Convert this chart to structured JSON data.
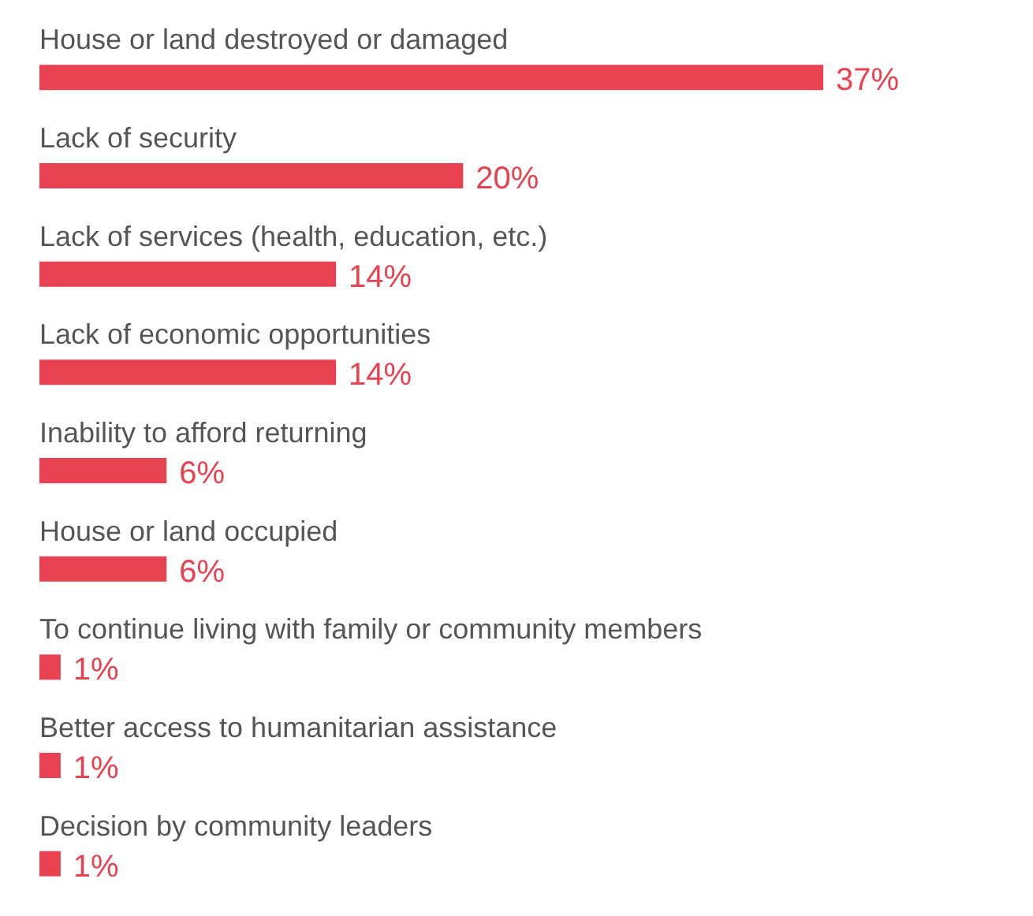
{
  "chart_data": {
    "type": "bar",
    "orientation": "horizontal",
    "categories": [
      "House or land destroyed or damaged",
      "Lack of security",
      "Lack of services (health, education, etc.)",
      "Lack of economic opportunities",
      "Inability to afford returning",
      "House or land occupied",
      "To continue living with family or community members",
      "Better access to humanitarian assistance",
      "Decision by community leaders"
    ],
    "values": [
      37,
      20,
      14,
      14,
      6,
      6,
      1,
      1,
      1
    ],
    "value_labels": [
      "37%",
      "20%",
      "14%",
      "14%",
      "6%",
      "6%",
      "1%",
      "1%",
      "1%"
    ],
    "color": "#e8414f",
    "xlim": [
      0,
      37
    ],
    "tick_labels": false
  }
}
